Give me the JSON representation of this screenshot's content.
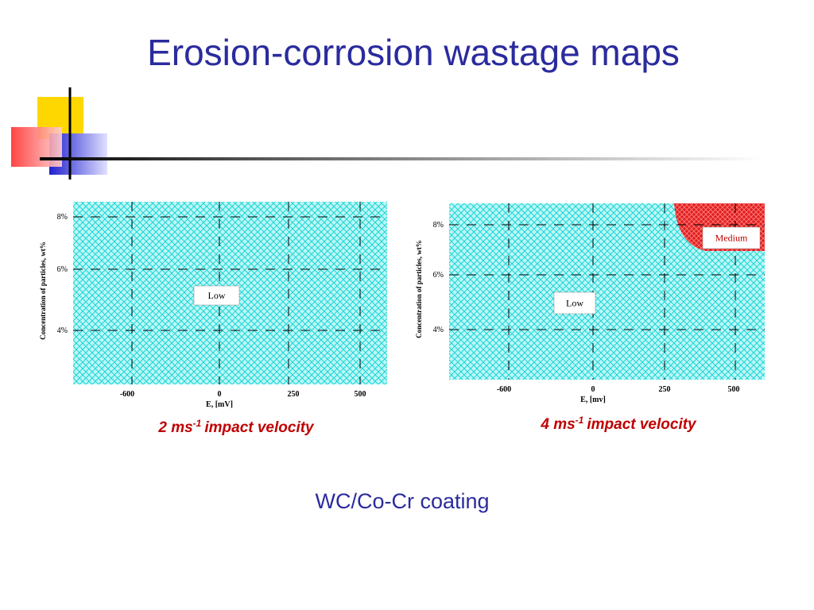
{
  "title": "Erosion-corrosion wastage maps",
  "maps": [
    {
      "y_label": "Concentration of particles, wt%",
      "y_ticks": [
        "8%",
        "6%",
        "4%"
      ],
      "x_ticks": [
        "-600",
        "0",
        "250",
        "500"
      ],
      "x_label": "E, [mV]",
      "regions": [
        "Low"
      ],
      "caption": {
        "text": "2 ms",
        "sup": "-1",
        "rest": "impact velocity"
      }
    },
    {
      "y_label": "Concentration of particles, wt%",
      "y_ticks": [
        "8%",
        "6%",
        "4%"
      ],
      "x_ticks": [
        "-600",
        "0",
        "250",
        "500"
      ],
      "x_label": "E, [mv]",
      "regions": [
        "Low",
        "Medium"
      ],
      "caption": {
        "text": "4 ms",
        "sup": "-1",
        "rest": "impact velocity"
      }
    }
  ],
  "footer": "WC/Co-Cr coating"
}
